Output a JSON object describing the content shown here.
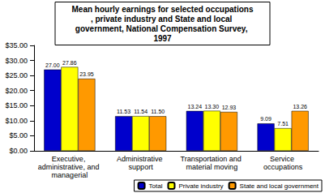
{
  "chart_data": {
    "type": "bar",
    "title": "Mean hourly earnings for selected occupations, private industry and State and local government, National Compensation Survey, 1997",
    "categories": [
      "Executive, administrative, and managerial",
      "Administrative support",
      "Transportation and material moving",
      "Service occupations"
    ],
    "series": [
      {
        "name": "Total",
        "color": "#0000cc",
        "values": [
          27.0,
          11.53,
          13.24,
          9.09
        ],
        "value_labels": [
          "27.00",
          "11.53",
          "13.24",
          "9.09"
        ]
      },
      {
        "name": "Private industry",
        "color": "#ffff00",
        "values": [
          27.86,
          11.54,
          13.3,
          7.51
        ],
        "value_labels": [
          "27.86",
          "11.54",
          "13.30",
          "7.51"
        ]
      },
      {
        "name": "State and local government",
        "color": "#ff9900",
        "values": [
          23.95,
          11.5,
          12.93,
          13.26
        ],
        "value_labels": [
          "23.95",
          "11.50",
          "12.93",
          "13.26"
        ]
      }
    ],
    "ylim": [
      0,
      35
    ],
    "yticks": [
      {
        "value": 0,
        "label": "$0.00"
      },
      {
        "value": 5,
        "label": "$5.00"
      },
      {
        "value": 10,
        "label": "$10.00"
      },
      {
        "value": 15,
        "label": "$15.00"
      },
      {
        "value": 20,
        "label": "$20.00"
      },
      {
        "value": 25,
        "label": "$25.00"
      },
      {
        "value": 30,
        "label": "$30.00"
      },
      {
        "value": 35,
        "label": "$35.00"
      }
    ],
    "grid": false,
    "legend": "bottom-right",
    "data_labels": true
  }
}
